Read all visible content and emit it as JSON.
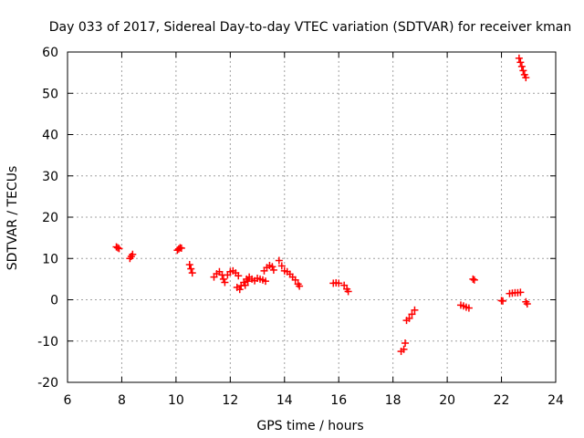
{
  "chart_data": {
    "type": "scatter",
    "title": "Day 033 of 2017, Sidereal Day-to-day VTEC variation (SDTVAR) for receiver kman",
    "xlabel": "GPS time / hours",
    "ylabel": "SDTVAR / TECUs",
    "xlim": [
      6,
      24
    ],
    "ylim": [
      -20,
      60
    ],
    "xticks": [
      6,
      8,
      10,
      12,
      14,
      16,
      18,
      20,
      22,
      24
    ],
    "yticks": [
      -20,
      -10,
      0,
      10,
      20,
      30,
      40,
      50,
      60
    ],
    "grid": true,
    "marker": "+",
    "color": "#ff0000",
    "series": [
      {
        "name": "SDTVAR",
        "points": [
          [
            7.8,
            12.8
          ],
          [
            7.85,
            12.6
          ],
          [
            7.9,
            12.4
          ],
          [
            8.3,
            10.0
          ],
          [
            8.35,
            10.5
          ],
          [
            8.4,
            11.0
          ],
          [
            10.05,
            12.0
          ],
          [
            10.1,
            12.3
          ],
          [
            10.15,
            12.6
          ],
          [
            10.2,
            12.5
          ],
          [
            10.5,
            8.5
          ],
          [
            10.55,
            7.5
          ],
          [
            10.6,
            6.5
          ],
          [
            11.4,
            5.5
          ],
          [
            11.5,
            6.3
          ],
          [
            11.6,
            6.8
          ],
          [
            11.7,
            6.0
          ],
          [
            11.75,
            5.0
          ],
          [
            11.8,
            4.2
          ],
          [
            11.9,
            6.0
          ],
          [
            12.0,
            6.8
          ],
          [
            12.1,
            7.0
          ],
          [
            12.2,
            6.5
          ],
          [
            12.3,
            5.8
          ],
          [
            12.25,
            3.0
          ],
          [
            12.35,
            2.5
          ],
          [
            12.4,
            3.4
          ],
          [
            12.5,
            4.2
          ],
          [
            12.55,
            3.5
          ],
          [
            12.65,
            4.5
          ],
          [
            12.6,
            5.0
          ],
          [
            12.7,
            5.5
          ],
          [
            12.8,
            5.0
          ],
          [
            12.9,
            4.6
          ],
          [
            13.0,
            5.2
          ],
          [
            13.1,
            5.0
          ],
          [
            13.2,
            4.8
          ],
          [
            13.3,
            4.5
          ],
          [
            13.25,
            7.0
          ],
          [
            13.35,
            7.8
          ],
          [
            13.45,
            8.3
          ],
          [
            13.55,
            8.0
          ],
          [
            13.6,
            7.2
          ],
          [
            13.8,
            9.5
          ],
          [
            13.9,
            8.2
          ],
          [
            14.0,
            7.0
          ],
          [
            14.1,
            6.8
          ],
          [
            14.2,
            6.2
          ],
          [
            14.3,
            5.5
          ],
          [
            14.4,
            4.8
          ],
          [
            14.5,
            3.8
          ],
          [
            14.55,
            3.3
          ],
          [
            15.8,
            4.0
          ],
          [
            15.9,
            4.1
          ],
          [
            16.0,
            4.0
          ],
          [
            16.2,
            3.5
          ],
          [
            16.3,
            2.6
          ],
          [
            16.35,
            2.0
          ],
          [
            18.3,
            -12.5
          ],
          [
            18.4,
            -12.0
          ],
          [
            18.45,
            -10.5
          ],
          [
            18.5,
            -5.0
          ],
          [
            18.6,
            -4.5
          ],
          [
            18.7,
            -3.5
          ],
          [
            18.8,
            -2.5
          ],
          [
            20.5,
            -1.3
          ],
          [
            20.6,
            -1.5
          ],
          [
            20.7,
            -1.8
          ],
          [
            20.8,
            -2.0
          ],
          [
            20.95,
            5.0
          ],
          [
            21.0,
            4.8
          ],
          [
            22.0,
            -0.2
          ],
          [
            22.05,
            -0.3
          ],
          [
            22.3,
            1.5
          ],
          [
            22.4,
            1.6
          ],
          [
            22.5,
            1.7
          ],
          [
            22.6,
            1.7
          ],
          [
            22.7,
            1.8
          ],
          [
            22.65,
            58.5
          ],
          [
            22.7,
            57.5
          ],
          [
            22.75,
            56.5
          ],
          [
            22.8,
            55.5
          ],
          [
            22.85,
            54.5
          ],
          [
            22.9,
            53.8
          ],
          [
            22.9,
            -0.5
          ],
          [
            22.95,
            -1.0
          ]
        ]
      }
    ]
  }
}
